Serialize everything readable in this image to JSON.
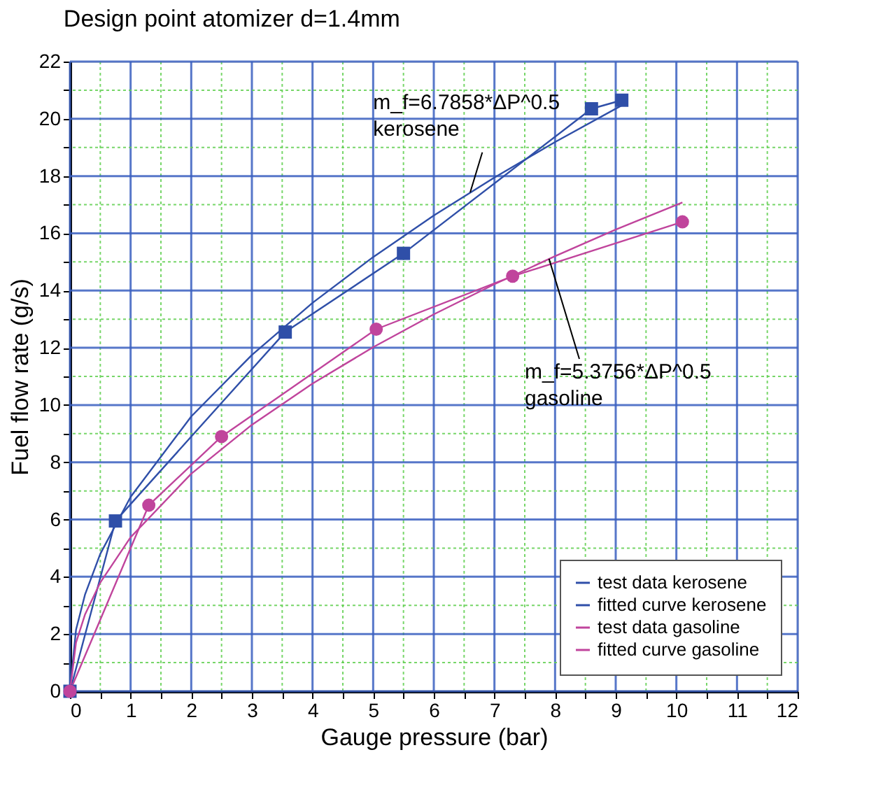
{
  "chart_data": {
    "type": "line",
    "title": "Design point atomizer d=1.4mm",
    "xlabel": "Gauge pressure (bar)",
    "ylabel": "Fuel flow rate (g/s)",
    "series": [
      {
        "name": "test data kerosene",
        "color": "#2f4fa8",
        "marker": "square",
        "x": [
          0,
          0.75,
          3.55,
          5.5,
          8.6,
          9.1
        ],
        "values": [
          0,
          5.95,
          12.55,
          15.3,
          20.35,
          20.65
        ]
      },
      {
        "name": "fitted curve kerosene",
        "color": "#2f4fa8",
        "marker": "none",
        "x": [
          0,
          0.1,
          0.25,
          0.5,
          1,
          2,
          3,
          4,
          5,
          6,
          7,
          8,
          9.1
        ],
        "values": [
          0,
          2.15,
          3.39,
          4.8,
          6.79,
          9.6,
          11.75,
          13.57,
          15.17,
          16.62,
          17.95,
          19.19,
          20.47
        ]
      },
      {
        "name": "test data gasoline",
        "color": "#c0449c",
        "marker": "circle",
        "x": [
          0,
          1.3,
          2.5,
          5.05,
          7.3,
          10.1
        ],
        "values": [
          0,
          6.5,
          8.9,
          12.65,
          14.5,
          16.4
        ]
      },
      {
        "name": "fitted curve gasoline",
        "color": "#c0449c",
        "marker": "none",
        "x": [
          0,
          0.1,
          0.25,
          0.5,
          1,
          2,
          3,
          4,
          5,
          6,
          7,
          8,
          9,
          10.1
        ],
        "values": [
          0,
          1.7,
          2.69,
          3.8,
          5.38,
          7.6,
          9.31,
          10.75,
          12.02,
          13.17,
          14.22,
          15.2,
          16.13,
          17.08
        ]
      }
    ],
    "xlim": [
      0,
      12
    ],
    "ylim": [
      0,
      22
    ],
    "xticks": [
      0,
      {
        "value": 0.5,
        "label": null
      },
      1,
      {
        "value": 1.5,
        "label": null
      },
      2,
      {
        "value": 2.5,
        "label": null
      },
      3,
      {
        "value": 3.5,
        "label": null
      },
      4,
      {
        "value": 4.5,
        "label": null
      },
      5,
      {
        "value": 5.5,
        "label": null
      },
      6,
      {
        "value": 6.5,
        "label": null
      },
      7,
      {
        "value": 7.5,
        "label": null
      },
      8,
      {
        "value": 8.5,
        "label": null
      },
      9,
      {
        "value": 9.5,
        "label": null
      },
      10,
      {
        "value": 10.5,
        "label": null
      },
      11,
      {
        "value": 11.5,
        "label": null
      },
      12
    ],
    "yticks": [
      0,
      {
        "value": 1,
        "label": null
      },
      2,
      {
        "value": 3,
        "label": null
      },
      4,
      {
        "value": 5,
        "label": null
      },
      6,
      {
        "value": 7,
        "label": null
      },
      8,
      {
        "value": 9,
        "label": null
      },
      10,
      {
        "value": 11,
        "label": null
      },
      12,
      {
        "value": 13,
        "label": null
      },
      14,
      {
        "value": 15,
        "label": null
      },
      16,
      {
        "value": 17,
        "label": null
      },
      18,
      {
        "value": 19,
        "label": null
      },
      20,
      {
        "value": 21,
        "label": null
      },
      22
    ],
    "grid": true,
    "legend": "bottom right",
    "line_style": "solid",
    "annotations": [
      {
        "text": "m_f=6.7858*ΔP^0.5\nkerosene",
        "x": 6.6,
        "y": 17.43
      },
      {
        "text": "m_f=5.3756*ΔP^0.5\ngasoline",
        "x": 7.9,
        "y": 15.11
      }
    ]
  }
}
